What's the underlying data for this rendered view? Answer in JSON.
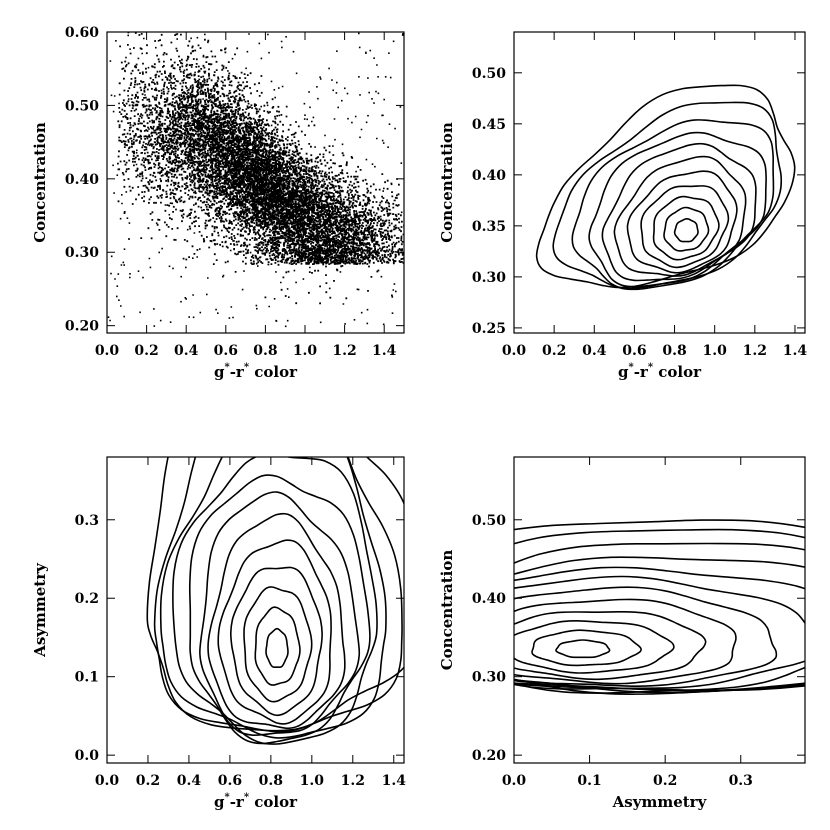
{
  "chart_data": [
    {
      "id": "tl",
      "type": "scatter",
      "xlabel": "g*-r* color",
      "ylabel": "Concentration",
      "xlim": [
        0.0,
        1.5
      ],
      "ylim": [
        0.19,
        0.6
      ],
      "xticks": [
        0.0,
        0.2,
        0.4,
        0.6,
        0.8,
        1.0,
        1.2,
        1.4
      ],
      "xtick_labels": [
        "0.0",
        "0.2",
        "0.4",
        "0.6",
        "0.8",
        "1.0",
        "1.2",
        "1.4"
      ],
      "yticks": [
        0.2,
        0.3,
        0.4,
        0.5,
        0.6
      ],
      "ytick_labels": [
        "0.20",
        "0.30",
        "0.40",
        "0.50",
        "0.60"
      ],
      "density_ridge": [
        {
          "x": 0.15,
          "y": 0.47
        },
        {
          "x": 0.45,
          "y": 0.46
        },
        {
          "x": 0.75,
          "y": 0.4
        },
        {
          "x": 1.05,
          "y": 0.34
        },
        {
          "x": 1.35,
          "y": 0.32
        }
      ]
    },
    {
      "id": "tr",
      "type": "contour",
      "xlabel": "g*-r* color",
      "ylabel": "Concentration",
      "xlim": [
        0.0,
        1.45
      ],
      "ylim": [
        0.245,
        0.54
      ],
      "xticks": [
        0.0,
        0.2,
        0.4,
        0.6,
        0.8,
        1.0,
        1.2,
        1.4
      ],
      "xtick_labels": [
        "0.0",
        "0.2",
        "0.4",
        "0.6",
        "0.8",
        "1.0",
        "1.2",
        "1.4"
      ],
      "yticks": [
        0.25,
        0.3,
        0.35,
        0.4,
        0.45,
        0.5
      ],
      "ytick_labels": [
        "0.25",
        "0.30",
        "0.35",
        "0.40",
        "0.45",
        "0.50"
      ],
      "peak": {
        "x": 0.87,
        "y": 0.34
      }
    },
    {
      "id": "bl",
      "type": "contour",
      "xlabel": "g*-r* color",
      "ylabel": "Asymmetry",
      "xlim": [
        0.0,
        1.45
      ],
      "ylim": [
        -0.01,
        0.38
      ],
      "xticks": [
        0.0,
        0.2,
        0.4,
        0.6,
        0.8,
        1.0,
        1.2,
        1.4
      ],
      "xtick_labels": [
        "0.0",
        "0.2",
        "0.4",
        "0.6",
        "0.8",
        "1.0",
        "1.2",
        "1.4"
      ],
      "yticks": [
        0.0,
        0.1,
        0.2,
        0.3
      ],
      "ytick_labels": [
        "0.0",
        "0.1",
        "0.2",
        "0.3"
      ],
      "peak": {
        "x": 0.83,
        "y": 0.135
      }
    },
    {
      "id": "br",
      "type": "contour",
      "xlabel": "Asymmetry",
      "ylabel": "Concentration",
      "xlim": [
        0.0,
        0.385
      ],
      "ylim": [
        0.19,
        0.58
      ],
      "xticks": [
        0.0,
        0.1,
        0.2,
        0.3
      ],
      "xtick_labels": [
        "0.0",
        "0.1",
        "0.2",
        "0.3"
      ],
      "yticks": [
        0.2,
        0.3,
        0.4,
        0.5
      ],
      "ytick_labels": [
        "0.20",
        "0.30",
        "0.40",
        "0.50"
      ],
      "peak": {
        "x": 0.08,
        "y": 0.34
      }
    }
  ]
}
